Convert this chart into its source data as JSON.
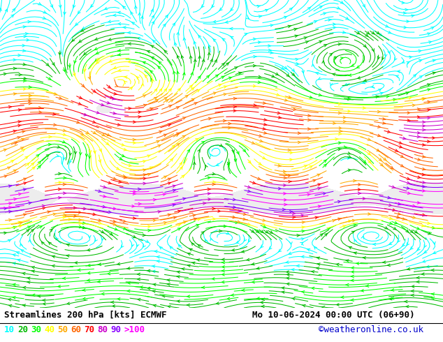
{
  "title_left": "Streamlines 200 hPa [kts] ECMWF",
  "title_right": "Mo 10-06-2024 00:00 UTC (06+90)",
  "credit": "©weatheronline.co.uk",
  "legend_labels": [
    "10",
    "20",
    "30",
    "40",
    "50",
    "60",
    "70",
    "80",
    "90",
    ">100"
  ],
  "legend_colors": [
    "#00ffff",
    "#00bb00",
    "#00ff00",
    "#ffff00",
    "#ffaa00",
    "#ff6600",
    "#ff0000",
    "#cc00cc",
    "#8800ff",
    "#ff00ff"
  ],
  "bg_color": "#ffffff",
  "title_color": "#000000",
  "title_fontsize": 9,
  "legend_fontsize": 9,
  "credit_color": "#0000cc",
  "speed_thresholds": [
    0,
    10,
    20,
    30,
    40,
    50,
    60,
    70,
    80,
    90,
    100,
    200
  ],
  "figsize": [
    6.34,
    4.9
  ],
  "dpi": 100
}
